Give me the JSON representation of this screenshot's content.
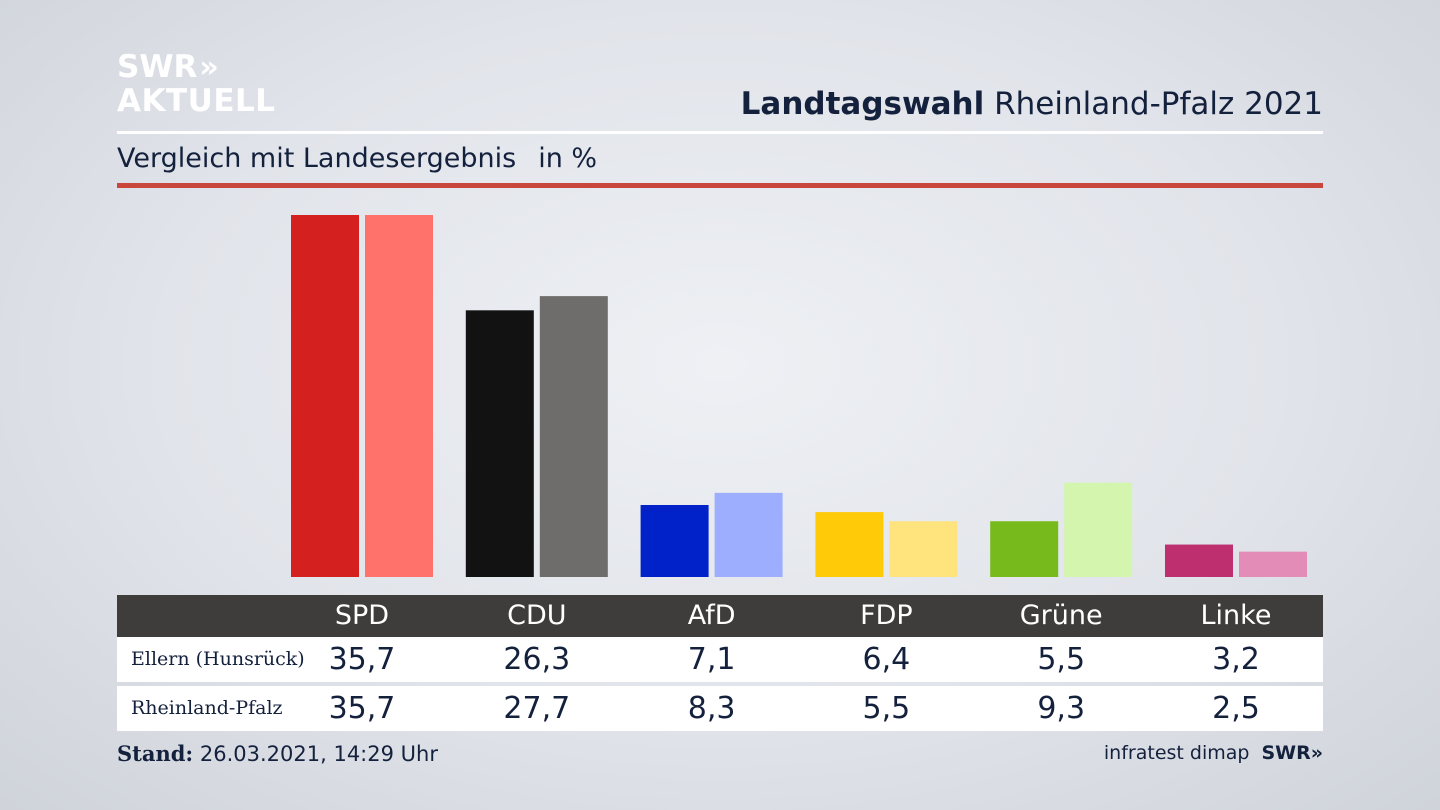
{
  "brand": {
    "line1": "SWR",
    "line2": "AKTUELL",
    "chevrons": "»"
  },
  "header": {
    "title_bold": "Landtagswahl",
    "title_rest": "Rheinland-Pfalz 2021"
  },
  "subheader": {
    "text": "Vergleich mit Landesergebnis",
    "unit": "in %"
  },
  "footer": {
    "stand_label": "Stand:",
    "stand_value": "26.03.2021, 14:29 Uhr",
    "source": "infratest dimap",
    "source_brand": "SWR»"
  },
  "colors": {
    "rule": "#c9463d",
    "table_header": "#3f3d3b"
  },
  "chart_data": {
    "type": "bar",
    "categories": [
      "SPD",
      "CDU",
      "AfD",
      "FDP",
      "Grüne",
      "Linke"
    ],
    "series": [
      {
        "name": "Ellern (Hunsrück)",
        "values": [
          35.7,
          26.3,
          7.1,
          6.4,
          5.5,
          3.2
        ],
        "display": [
          "35,7",
          "26,3",
          "7,1",
          "6,4",
          "5,5",
          "3,2"
        ],
        "colors": [
          "#d52020",
          "#121212",
          "#0022c8",
          "#ffcb08",
          "#76ba1b",
          "#bd2f6f"
        ]
      },
      {
        "name": "Rheinland-Pfalz",
        "values": [
          35.7,
          27.7,
          8.3,
          5.5,
          9.3,
          2.5
        ],
        "display": [
          "35,7",
          "27,7",
          "8,3",
          "5,5",
          "9,3",
          "2,5"
        ],
        "colors": [
          "#ff716b",
          "#6f6d6b",
          "#9eaeff",
          "#ffe37d",
          "#d4f5ad",
          "#e28cb7"
        ]
      }
    ],
    "ylim": [
      0,
      35.7
    ]
  }
}
